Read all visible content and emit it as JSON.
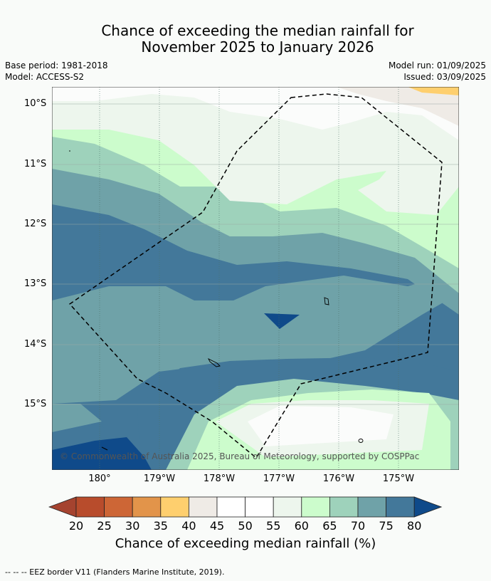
{
  "title": {
    "line1": "Chance of exceeding the median rainfall for",
    "line2": "November 2025 to January 2026"
  },
  "meta": {
    "base_period": "Base period: 1981-2018",
    "model": "Model: ACCESS-S2",
    "model_run": "Model run: 01/09/2025",
    "issued": "Issued: 03/09/2025"
  },
  "map": {
    "lat_labels": [
      "10°S",
      "11°S",
      "12°S",
      "13°S",
      "14°S",
      "15°S"
    ],
    "lon_labels": [
      "180°",
      "179°W",
      "178°W",
      "177°W",
      "176°W",
      "175°W"
    ],
    "credit": "© Commonwealth of Australia 2025, Bureau of Meteorology, supported by COSPPac"
  },
  "colorbar": {
    "ticks": [
      "20",
      "25",
      "30",
      "35",
      "40",
      "45",
      "50",
      "55",
      "60",
      "65",
      "70",
      "75",
      "80"
    ],
    "colors": [
      "#a5432f",
      "#b84c2c",
      "#cd6636",
      "#e2944a",
      "#fecf6e",
      "#efebe6",
      "#ffffff",
      "#ffffff",
      "#edf6ed",
      "#ccfccc",
      "#9ed2bb",
      "#6fa2a8",
      "#43789a",
      "#0f4a8a"
    ],
    "label": "Chance of exceeding median rainfall (%)"
  },
  "footnote": "--  --  -- EEZ border V11 (Flanders Marine Institute, 2019)."
}
